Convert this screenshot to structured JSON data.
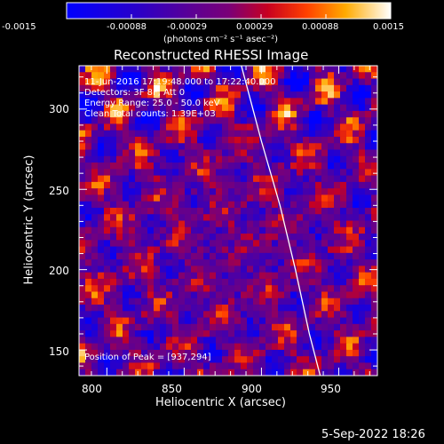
{
  "chart_data": {
    "type": "heatmap",
    "title": "Reconstructed RHESSI Image",
    "xlabel": "Heliocentric X (arcsec)",
    "ylabel": "Heliocentric Y (arcsec)",
    "xlim": [
      782,
      975
    ],
    "ylim": [
      134,
      327
    ],
    "xticks": [
      800,
      850,
      900,
      950
    ],
    "yticks": [
      150,
      200,
      250,
      300
    ],
    "colorbar": {
      "range": [
        -0.0015,
        0.0015
      ],
      "ticks": [
        "-0.0015",
        "-0.00088",
        "-0.00029",
        "0.00029",
        "0.00088",
        "0.0015"
      ],
      "unit_label": "(photons cm⁻² s⁻¹ asec⁻²)"
    },
    "annotations": {
      "time": "11-Jun-2016 17:19:48.000 to 17:22:40.000",
      "detectors": "Detectors: 3F 8F, Att 0",
      "energy": "Energy Range: 25.0 - 50.0 keV",
      "method": "Clean    Total counts: 1.39E+03",
      "peak": "Position of Peak = [937,294]"
    },
    "limb_curve": [
      [
        887,
        327
      ],
      [
        900,
        280
      ],
      [
        912,
        240
      ],
      [
        922,
        200
      ],
      [
        931,
        160
      ],
      [
        938,
        134
      ]
    ],
    "peak_position": [
      937,
      294
    ],
    "grid": false
  },
  "footer": {
    "timestamp": "5-Sep-2022 18:26"
  },
  "colors": {
    "background": "#000000",
    "text": "#ffffff",
    "limb": "#ffffff"
  }
}
